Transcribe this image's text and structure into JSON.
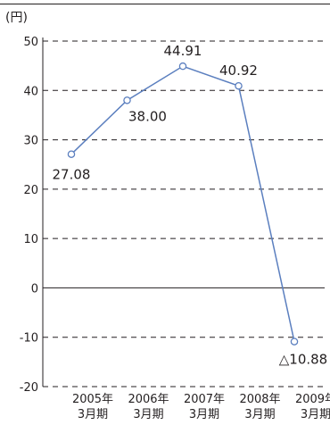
{
  "chart_data": {
    "type": "line",
    "unit_label": "(円)",
    "categories": [
      "2005年\n3月期",
      "2006年\n3月期",
      "2007年\n3月期",
      "2008年\n3月期",
      "2009年\n3月期"
    ],
    "values": [
      27.08,
      38.0,
      44.91,
      40.92,
      -10.88
    ],
    "data_labels": [
      "27.08",
      "38.00",
      "44.91",
      "40.92",
      "△10.88"
    ],
    "ylim": [
      -20,
      50
    ],
    "yticks": [
      50,
      40,
      30,
      20,
      10,
      0,
      -10,
      -20
    ],
    "ytick_labels": [
      "50",
      "40",
      "30",
      "20",
      "10",
      "0",
      "-10",
      "-20"
    ],
    "grid": "dashed horizontal",
    "colors": {
      "line": "#5b7fbf",
      "marker_fill": "#ffffff",
      "grid": "#231f20",
      "text": "#231f20"
    }
  }
}
